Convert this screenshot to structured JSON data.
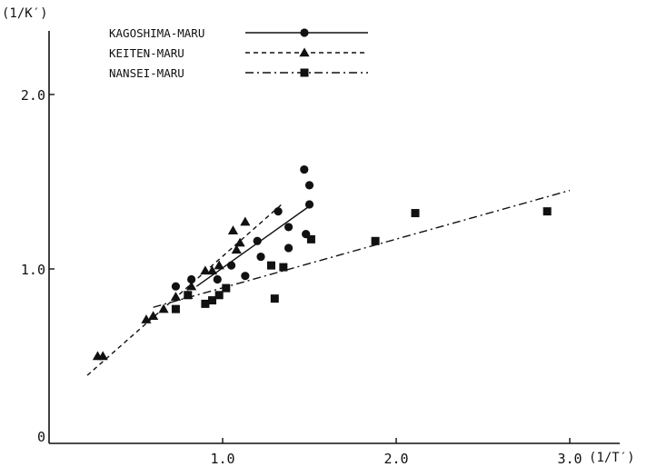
{
  "chart_data": {
    "type": "scatter",
    "xlabel": "(1/T′)",
    "ylabel": "(1/K′)",
    "xlim": [
      0,
      3.3
    ],
    "ylim": [
      0,
      2.4
    ],
    "x_ticks": [
      1.0,
      2.0,
      3.0
    ],
    "y_ticks": [
      0,
      1.0,
      2.0
    ],
    "legend_position": "top-left",
    "series": [
      {
        "name": "KAGOSHIMA-MARU",
        "marker": "circle",
        "line_style": "solid",
        "points": [
          [
            0.73,
            0.9
          ],
          [
            0.82,
            0.94
          ],
          [
            0.97,
            0.94
          ],
          [
            1.05,
            1.02
          ],
          [
            1.13,
            0.96
          ],
          [
            1.2,
            1.16
          ],
          [
            1.22,
            1.07
          ],
          [
            1.32,
            1.33
          ],
          [
            1.38,
            1.24
          ],
          [
            1.38,
            1.12
          ],
          [
            1.47,
            1.57
          ],
          [
            1.48,
            1.2
          ],
          [
            1.5,
            1.37
          ],
          [
            1.5,
            1.48
          ]
        ],
        "fit_line": [
          [
            0.85,
            0.9
          ],
          [
            1.5,
            1.36
          ]
        ]
      },
      {
        "name": "KEITEN-MARU",
        "marker": "triangle",
        "line_style": "dashed",
        "points": [
          [
            0.28,
            0.5
          ],
          [
            0.31,
            0.5
          ],
          [
            0.56,
            0.71
          ],
          [
            0.6,
            0.73
          ],
          [
            0.66,
            0.77
          ],
          [
            0.73,
            0.84
          ],
          [
            0.8,
            0.85
          ],
          [
            0.82,
            0.9
          ],
          [
            0.9,
            0.99
          ],
          [
            0.94,
            0.99
          ],
          [
            0.98,
            1.02
          ],
          [
            1.06,
            1.22
          ],
          [
            1.08,
            1.11
          ],
          [
            1.1,
            1.15
          ],
          [
            1.13,
            1.27
          ]
        ],
        "fit_line": [
          [
            0.22,
            0.39
          ],
          [
            1.34,
            1.37
          ]
        ]
      },
      {
        "name": "NANSEI-MARU",
        "marker": "square",
        "line_style": "dashdot",
        "points": [
          [
            0.73,
            0.77
          ],
          [
            0.8,
            0.85
          ],
          [
            0.9,
            0.8
          ],
          [
            0.94,
            0.82
          ],
          [
            0.98,
            0.85
          ],
          [
            1.02,
            0.89
          ],
          [
            1.28,
            1.02
          ],
          [
            1.3,
            0.83
          ],
          [
            1.35,
            1.01
          ],
          [
            1.51,
            1.17
          ],
          [
            1.88,
            1.16
          ],
          [
            2.11,
            1.32
          ],
          [
            2.87,
            1.33
          ]
        ],
        "fit_line": [
          [
            0.6,
            0.78
          ],
          [
            3.0,
            1.45
          ]
        ]
      }
    ]
  }
}
